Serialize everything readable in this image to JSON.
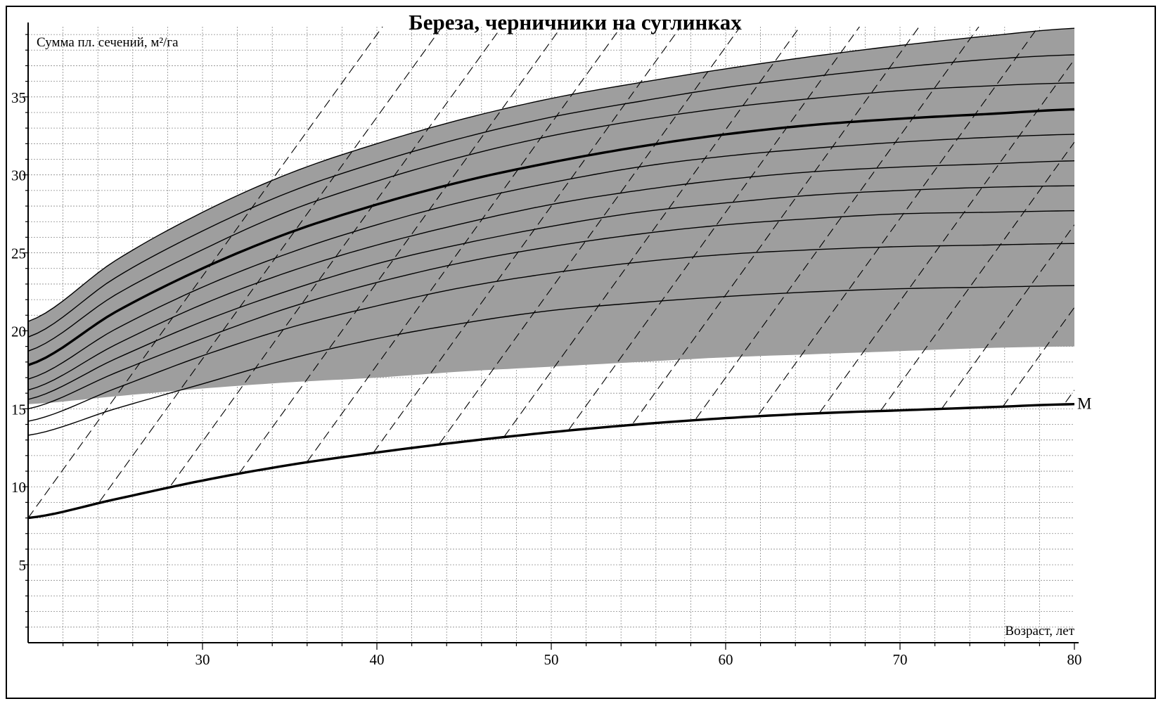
{
  "chart_data": {
    "type": "line",
    "title": "Береза, черничники на суглинках",
    "ylabel": "Сумма пл. сечений, м²/га",
    "xlabel": "Возраст, лет",
    "xlim": [
      20,
      80
    ],
    "ylim": [
      0,
      39.5
    ],
    "x_ticks": [
      30,
      40,
      50,
      60,
      70,
      80
    ],
    "y_ticks": [
      5,
      10,
      15,
      20,
      25,
      30,
      35
    ],
    "grid": true,
    "x": [
      20,
      25,
      30,
      35,
      40,
      45,
      50,
      55,
      60,
      65,
      70,
      75,
      80
    ],
    "shaded_band": {
      "color": "#9e9e9e",
      "upper": [
        20.6,
        24.5,
        27.6,
        30.1,
        32.0,
        33.6,
        34.9,
        35.9,
        36.8,
        37.6,
        38.3,
        38.9,
        39.4
      ],
      "lower": [
        15.3,
        15.8,
        16.3,
        16.7,
        17.0,
        17.4,
        17.7,
        18.0,
        18.3,
        18.5,
        18.7,
        18.9,
        19.0
      ]
    },
    "series": [
      {
        "values": [
          20.6,
          24.5,
          27.6,
          30.1,
          32.0,
          33.6,
          34.9,
          35.9,
          36.8,
          37.6,
          38.3,
          38.9,
          39.4
        ],
        "weight": "thin"
      },
      {
        "values": [
          19.6,
          23.4,
          26.4,
          28.9,
          30.8,
          32.4,
          33.7,
          34.7,
          35.6,
          36.3,
          36.9,
          37.4,
          37.7
        ],
        "weight": "thin"
      },
      {
        "values": [
          18.7,
          22.3,
          25.2,
          27.7,
          29.6,
          31.2,
          32.5,
          33.5,
          34.3,
          34.9,
          35.4,
          35.7,
          35.9
        ],
        "weight": "thin"
      },
      {
        "values": [
          17.8,
          21.2,
          24.0,
          26.3,
          28.1,
          29.6,
          30.8,
          31.8,
          32.6,
          33.2,
          33.6,
          33.9,
          34.2
        ],
        "weight": "bold"
      },
      {
        "values": [
          16.9,
          20.1,
          22.8,
          25.0,
          26.8,
          28.3,
          29.5,
          30.5,
          31.2,
          31.7,
          32.1,
          32.4,
          32.6
        ],
        "weight": "thin"
      },
      {
        "values": [
          16.2,
          19.1,
          21.7,
          23.8,
          25.5,
          26.9,
          28.1,
          29.0,
          29.7,
          30.2,
          30.5,
          30.7,
          30.9
        ],
        "weight": "thin"
      },
      {
        "values": [
          15.6,
          18.2,
          20.6,
          22.6,
          24.3,
          25.6,
          26.7,
          27.6,
          28.2,
          28.7,
          29.0,
          29.2,
          29.3
        ],
        "weight": "thin"
      },
      {
        "values": [
          15.0,
          17.3,
          19.5,
          21.5,
          23.1,
          24.4,
          25.4,
          26.2,
          26.8,
          27.2,
          27.5,
          27.6,
          27.7
        ],
        "weight": "thin"
      },
      {
        "values": [
          14.2,
          16.3,
          18.4,
          20.2,
          21.6,
          22.8,
          23.7,
          24.4,
          24.9,
          25.2,
          25.4,
          25.5,
          25.6
        ],
        "weight": "thin"
      },
      {
        "values": [
          13.3,
          15.0,
          16.6,
          18.2,
          19.5,
          20.5,
          21.3,
          21.8,
          22.2,
          22.5,
          22.7,
          22.8,
          22.9
        ],
        "weight": "thin"
      },
      {
        "name": "М",
        "values": [
          8.0,
          9.2,
          10.4,
          11.4,
          12.2,
          12.9,
          13.5,
          14.0,
          14.4,
          14.7,
          14.9,
          15.1,
          15.3
        ],
        "weight": "bold"
      }
    ],
    "dashed_lines": {
      "slope_per_year": 1.55,
      "start_y_at_20": [
        8.0,
        2.7,
        -2.6,
        -7.9,
        -13.2,
        -18.5,
        -23.8,
        -29.1,
        -34.4,
        -39.7,
        -45.0,
        -50.3,
        -55.6,
        -60.9,
        -66.2,
        -71.5,
        -76.8,
        -82.1,
        -87.4
      ],
      "min_y": 8.0
    }
  }
}
